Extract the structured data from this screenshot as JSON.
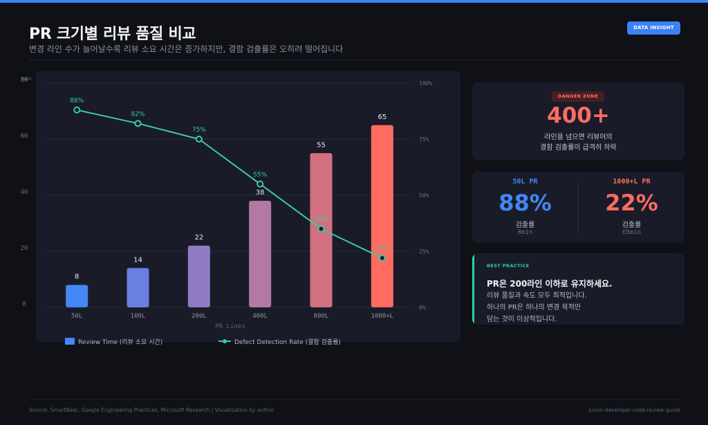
{
  "header": {
    "title": "PR 크기별 리뷰 품질 비교",
    "subtitle": "변경 라인 수가 늘어날수록 리뷰 소요 시간은 증가하지만, 결함 검출률은 오히려 떨어집니다",
    "badge": "DATA INSIGHT"
  },
  "colors": {
    "background": "#0f1117",
    "card": "#191c28",
    "accent_blue": "#3b82f6",
    "accent_red": "#ff6b61",
    "accent_teal": "#2dd4a6",
    "bar_gradient": [
      "#4287f5",
      "#6b7fe0",
      "#907bc4",
      "#b478a6",
      "#d27080",
      "#ff6b61"
    ]
  },
  "chart_data": {
    "type": "bar",
    "categories": [
      "50L",
      "100L",
      "200L",
      "400L",
      "800L",
      "1000+L"
    ],
    "xlabel": "PR Lines",
    "ylabel": "min",
    "ylim": [
      0,
      80
    ],
    "y_ticks": [
      0,
      20,
      40,
      60,
      80
    ],
    "y2lim": [
      0,
      100
    ],
    "y2_ticks": [
      0,
      25,
      50,
      75,
      100
    ],
    "y2_tick_labels": [
      "0%",
      "25%",
      "50%",
      "75%",
      "100%"
    ],
    "grid": true,
    "legend_position": "bottom-left",
    "series": [
      {
        "name": "Review Time (리뷰 소요 시간)",
        "type": "bar",
        "axis": "left",
        "values": [
          8,
          14,
          22,
          38,
          55,
          65
        ],
        "labels": [
          "8",
          "14",
          "22",
          "38",
          "55",
          "65"
        ]
      },
      {
        "name": "Defect Detection Rate (결함 검출률)",
        "type": "line",
        "axis": "right",
        "values": [
          88,
          82,
          75,
          55,
          35,
          22
        ],
        "labels": [
          "88%",
          "82%",
          "75%",
          "55%",
          "35%",
          "22%"
        ],
        "color": "#3ec9a7"
      }
    ]
  },
  "danger": {
    "badge": "DANGER ZONE",
    "value": "400+",
    "desc": "라인을 넘으면 리뷰어의\n결함 검출률이 급격히 하락"
  },
  "compare": {
    "left": {
      "label": "50L PR",
      "value": "88%",
      "sub": "검출률",
      "sub2": "8min",
      "color": "#4287f5"
    },
    "right": {
      "label": "1000+L PR",
      "value": "22%",
      "sub": "검출률",
      "sub2": "65min",
      "color": "#ff6b61"
    }
  },
  "best": {
    "tag": "BEST PRACTICE",
    "title": "PR은 200라인 이하로 유지하세요.",
    "body": "리뷰 품질과 속도 모두 최적입니다.\n하나의 PR은 하나의 변경 목적만\n담는 것이 이상적입니다."
  },
  "footer": {
    "source": "Source: SmartBear, Google Engineering Practices, Microsoft Research  |  Visualization by author",
    "repo": "junior-developer-code-review-guide"
  }
}
